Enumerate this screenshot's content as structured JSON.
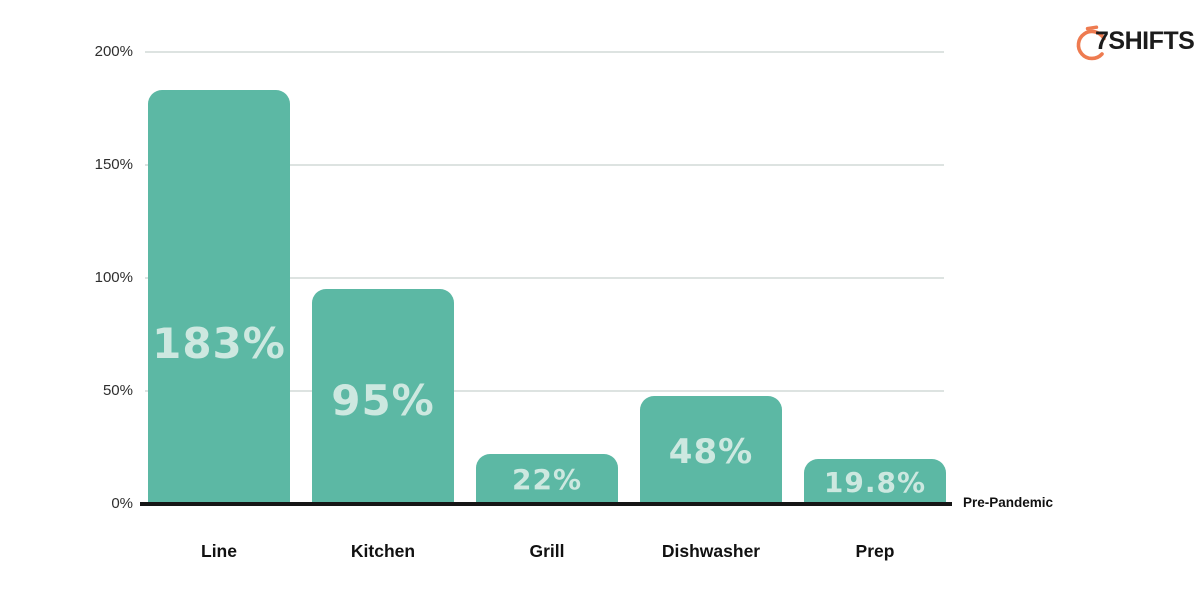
{
  "logo": {
    "text": "7SHIFTS",
    "icon": "stopwatch-icon",
    "accent_color": "#EE7B50",
    "text_color": "#1C1C1C"
  },
  "colors": {
    "bar": "#5CB8A4",
    "bar_label": "#CDE8E0",
    "gridline": "#DDE3E1",
    "axis": "#161616"
  },
  "chart_data": {
    "type": "bar",
    "categories": [
      "Line",
      "Kitchen",
      "Grill",
      "Dishwasher",
      "Prep"
    ],
    "values": [
      183,
      95,
      22,
      48,
      19.8
    ],
    "bar_labels": [
      "183%",
      "95%",
      "22%",
      "48%",
      "19.8%"
    ],
    "title": "",
    "xlabel": "",
    "ylabel": "",
    "ylim": [
      0,
      200
    ],
    "yticks": [
      0,
      50,
      100,
      150,
      200
    ],
    "ytick_labels": [
      "0%",
      "50%",
      "100%",
      "150%",
      "200%"
    ],
    "grid": true,
    "legend": false,
    "baseline_annotation": "Pre-Pandemic"
  }
}
